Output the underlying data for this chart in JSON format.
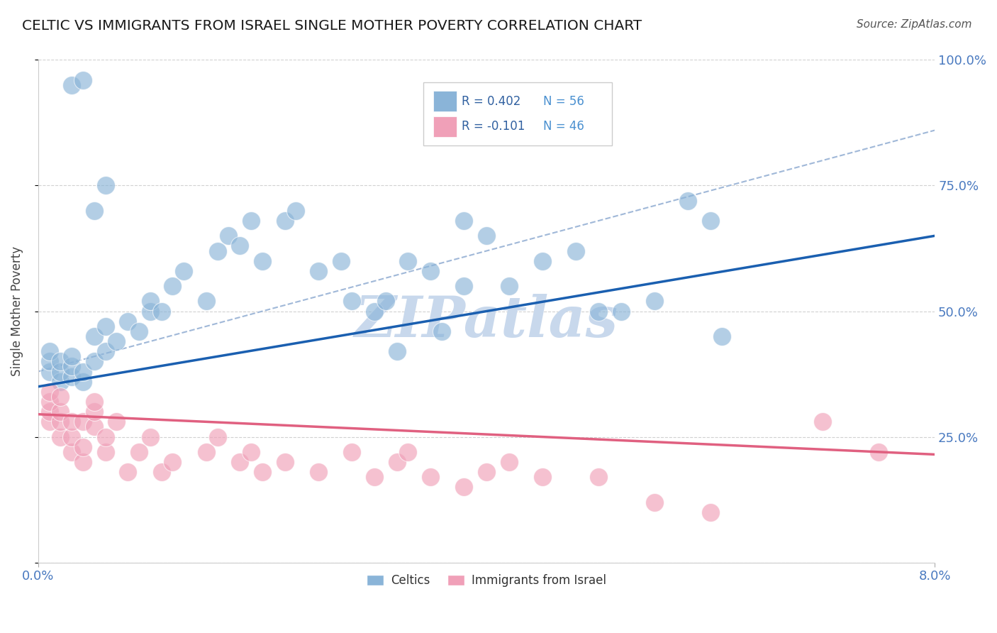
{
  "title": "CELTIC VS IMMIGRANTS FROM ISRAEL SINGLE MOTHER POVERTY CORRELATION CHART",
  "source": "Source: ZipAtlas.com",
  "ylabel": "Single Mother Poverty",
  "r_celtics": 0.402,
  "n_celtics": 56,
  "r_israel": -0.101,
  "n_israel": 46,
  "celtics_color": "#8ab4d8",
  "israel_color": "#f0a0b8",
  "celtics_line_color": "#1a5fb0",
  "israel_line_color": "#e06080",
  "dashed_line_color": "#a0b8d8",
  "watermark_color": "#c8d8ec",
  "right_axis_color": "#4a7ac0",
  "legend_r_color": "#3060a0",
  "legend_n_color": "#4a90d0",
  "background": "#ffffff",
  "celtics_x": [
    0.001,
    0.001,
    0.001,
    0.002,
    0.002,
    0.002,
    0.003,
    0.003,
    0.003,
    0.004,
    0.004,
    0.005,
    0.005,
    0.006,
    0.006,
    0.007,
    0.008,
    0.009,
    0.01,
    0.01,
    0.011,
    0.012,
    0.013,
    0.015,
    0.016,
    0.017,
    0.018,
    0.019,
    0.02,
    0.022,
    0.023,
    0.025,
    0.027,
    0.028,
    0.03,
    0.031,
    0.033,
    0.035,
    0.038,
    0.038,
    0.04,
    0.042,
    0.045,
    0.048,
    0.05,
    0.052,
    0.055,
    0.058,
    0.06,
    0.061,
    0.003,
    0.004,
    0.005,
    0.006,
    0.032,
    0.036
  ],
  "celtics_y": [
    0.38,
    0.4,
    0.42,
    0.36,
    0.38,
    0.4,
    0.37,
    0.39,
    0.41,
    0.36,
    0.38,
    0.4,
    0.45,
    0.42,
    0.47,
    0.44,
    0.48,
    0.46,
    0.5,
    0.52,
    0.5,
    0.55,
    0.58,
    0.52,
    0.62,
    0.65,
    0.63,
    0.68,
    0.6,
    0.68,
    0.7,
    0.58,
    0.6,
    0.52,
    0.5,
    0.52,
    0.6,
    0.58,
    0.55,
    0.68,
    0.65,
    0.55,
    0.6,
    0.62,
    0.5,
    0.5,
    0.52,
    0.72,
    0.68,
    0.45,
    0.95,
    0.96,
    0.7,
    0.75,
    0.42,
    0.46
  ],
  "israel_x": [
    0.001,
    0.001,
    0.001,
    0.001,
    0.002,
    0.002,
    0.002,
    0.002,
    0.003,
    0.003,
    0.003,
    0.004,
    0.004,
    0.004,
    0.005,
    0.005,
    0.005,
    0.006,
    0.006,
    0.007,
    0.008,
    0.009,
    0.01,
    0.011,
    0.012,
    0.015,
    0.016,
    0.018,
    0.019,
    0.02,
    0.022,
    0.025,
    0.028,
    0.03,
    0.032,
    0.033,
    0.035,
    0.038,
    0.04,
    0.042,
    0.045,
    0.05,
    0.055,
    0.06,
    0.07,
    0.075
  ],
  "israel_y": [
    0.28,
    0.3,
    0.32,
    0.34,
    0.25,
    0.28,
    0.3,
    0.33,
    0.22,
    0.25,
    0.28,
    0.2,
    0.23,
    0.28,
    0.27,
    0.3,
    0.32,
    0.22,
    0.25,
    0.28,
    0.18,
    0.22,
    0.25,
    0.18,
    0.2,
    0.22,
    0.25,
    0.2,
    0.22,
    0.18,
    0.2,
    0.18,
    0.22,
    0.17,
    0.2,
    0.22,
    0.17,
    0.15,
    0.18,
    0.2,
    0.17,
    0.17,
    0.12,
    0.1,
    0.28,
    0.22
  ],
  "xmin": 0.0,
  "xmax": 0.08,
  "ymin": 0.0,
  "ymax": 1.0,
  "yticks": [
    0.0,
    0.25,
    0.5,
    0.75,
    1.0
  ],
  "ytick_labels_right": [
    "",
    "25.0%",
    "50.0%",
    "75.0%",
    "100.0%"
  ],
  "xtick_vals": [
    0.0,
    0.08
  ],
  "xtick_labels": [
    "0.0%",
    "8.0%"
  ],
  "celtics_trendline": [
    0.35,
    0.65
  ],
  "israel_trendline": [
    0.295,
    0.215
  ],
  "dashed_line": [
    0.38,
    0.86
  ]
}
